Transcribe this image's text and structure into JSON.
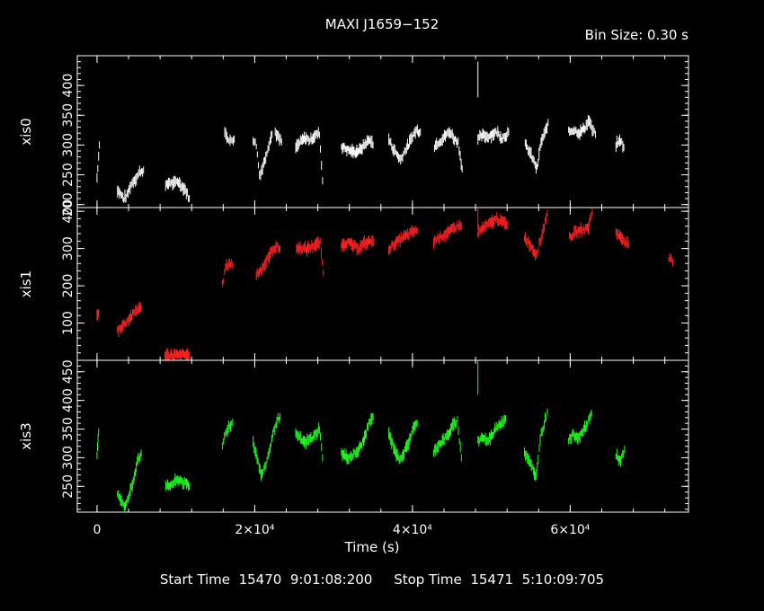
{
  "title": "MAXI J1659−152",
  "bin_size": "Bin Size: 0.30 s",
  "footer": {
    "start_label": "Start Time",
    "start_value": "15470  9:01:08:200",
    "stop_label": "Stop Time",
    "stop_value": "15471  5:10:09:705"
  },
  "chart_data": {
    "type": "scatter",
    "xlabel": "Time (s)",
    "xlim": [
      -2500,
      75000
    ],
    "x_ticks": [
      0,
      20000,
      40000,
      60000
    ],
    "x_tick_labels": [
      "0",
      "2×10⁴",
      "4×10⁴",
      "6×10⁴"
    ],
    "grid": false,
    "panels": [
      {
        "name": "xis0",
        "ylabel": "xis0",
        "color": "#ffffff",
        "ylim": [
          195,
          450
        ],
        "y_ticks": [
          200,
          250,
          300,
          350,
          400
        ],
        "segments": [
          {
            "x": [
              0,
              300
            ],
            "y": [
              245,
              300
            ]
          },
          {
            "x": [
              2600,
              3400,
              3800,
              4200,
              4600,
              5000,
              5400,
              5900
            ],
            "y": [
              225,
              210,
              215,
              230,
              240,
              245,
              255,
              258
            ]
          },
          {
            "x": [
              8700,
              9200,
              9700,
              10200,
              10700,
              11200,
              11700
            ],
            "y": [
              230,
              238,
              234,
              240,
              232,
              225,
              210
            ]
          },
          {
            "x": [
              16200,
              16600,
              17000,
              17400
            ],
            "y": [
              320,
              312,
              306,
              310
            ]
          },
          {
            "x": [
              19800,
              20200,
              20600,
              21000,
              21400,
              21800,
              22200
            ],
            "y": [
              310,
              300,
              250,
              262,
              282,
              302,
              318
            ]
          },
          {
            "x": [
              22600,
              23000,
              23400
            ],
            "y": [
              322,
              312,
              305
            ]
          },
          {
            "x": [
              25200,
              25800,
              26400,
              27000,
              27600,
              28200,
              28600
            ],
            "y": [
              295,
              305,
              312,
              308,
              316,
              320,
              240
            ]
          },
          {
            "x": [
              31000,
              31800,
              32600,
              33400,
              34000,
              34600,
              35000
            ],
            "y": [
              298,
              292,
              288,
              292,
              302,
              310,
              300
            ]
          },
          {
            "x": [
              37000,
              37500,
              38000,
              38500,
              39000,
              39500,
              40000,
              40500,
              41000
            ],
            "y": [
              310,
              295,
              285,
              275,
              290,
              300,
              315,
              325,
              322
            ]
          },
          {
            "x": [
              42800,
              43300,
              43800,
              44300,
              44800,
              45300,
              45800,
              46300
            ],
            "y": [
              298,
              305,
              310,
              318,
              322,
              310,
              305,
              260
            ]
          },
          {
            "x": [
              48300,
              48900,
              49500,
              50100,
              50700,
              51300,
              51800,
              52200
            ],
            "y": [
              310,
              316,
              314,
              318,
              322,
              312,
              316,
              322
            ]
          },
          {
            "x": [
              54300,
              54800,
              55300,
              55800,
              56300,
              56800,
              57200
            ],
            "y": [
              300,
              290,
              275,
              260,
              305,
              320,
              338
            ]
          },
          {
            "x": [
              59800,
              60500,
              61200,
              61900,
              62400,
              62800,
              63200
            ],
            "y": [
              322,
              326,
              320,
              330,
              342,
              325,
              318
            ]
          },
          {
            "x": [
              65800,
              66400,
              66800
            ],
            "y": [
              300,
              308,
              296
            ]
          }
        ]
      },
      {
        "name": "xis1",
        "ylabel": "xis1",
        "color": "#ff2020",
        "ylim": [
          0,
          410
        ],
        "y_ticks": [
          100,
          200,
          300,
          400
        ],
        "segments": [
          {
            "x": [
              0,
              200
            ],
            "y": [
              118,
              128
            ]
          },
          {
            "x": [
              2600,
              3200,
              3800,
              4400,
              5000,
              5600
            ],
            "y": [
              80,
              92,
              105,
              120,
              135,
              140
            ]
          },
          {
            "x": [
              8600,
              9400,
              10200,
              11000,
              11700
            ],
            "y": [
              12,
              14,
              13,
              15,
              12
            ]
          },
          {
            "x": [
              15900,
              16300,
              16800,
              17200
            ],
            "y": [
              200,
              250,
              262,
              255
            ]
          },
          {
            "x": [
              20200,
              20700,
              21200,
              21700,
              22200,
              22700,
              23200
            ],
            "y": [
              230,
              242,
              255,
              275,
              295,
              305,
              300
            ]
          },
          {
            "x": [
              25300,
              25900,
              26500,
              27100,
              27700,
              28300,
              28700
            ],
            "y": [
              300,
              302,
              298,
              304,
              310,
              315,
              235
            ]
          },
          {
            "x": [
              31000,
              31800,
              32500,
              33200,
              33900,
              34600,
              35100
            ],
            "y": [
              310,
              318,
              306,
              302,
              314,
              320,
              316
            ]
          },
          {
            "x": [
              37000,
              37600,
              38200,
              38800,
              39400,
              40000,
              40600
            ],
            "y": [
              300,
              310,
              320,
              330,
              336,
              345,
              348
            ]
          },
          {
            "x": [
              42700,
              43300,
              43900,
              44500,
              45100,
              45700,
              46200
            ],
            "y": [
              318,
              330,
              335,
              342,
              352,
              362,
              360
            ]
          },
          {
            "x": [
              48300,
              48900,
              49500,
              50100,
              50700,
              51300,
              52000
            ],
            "y": [
              342,
              354,
              362,
              372,
              380,
              372,
              364
            ]
          },
          {
            "x": [
              54200,
              54700,
              55200,
              55700,
              56200,
              56700,
              57100
            ],
            "y": [
              330,
              318,
              300,
              285,
              320,
              362,
              395
            ]
          },
          {
            "x": [
              59900,
              60500,
              61100,
              61700,
              62300,
              62800
            ],
            "y": [
              330,
              340,
              348,
              352,
              358,
              400
            ]
          },
          {
            "x": [
              65800,
              66400,
              67000,
              67400
            ],
            "y": [
              345,
              330,
              320,
              310
            ]
          },
          {
            "x": [
              72500,
              73000
            ],
            "y": [
              275,
              262
            ]
          }
        ]
      },
      {
        "name": "xis3",
        "ylabel": "xis3",
        "color": "#20ff20",
        "ylim": [
          205,
          470
        ],
        "y_ticks": [
          250,
          300,
          350,
          400,
          450
        ],
        "segments": [
          {
            "x": [
              0,
              200
            ],
            "y": [
              305,
              345
            ]
          },
          {
            "x": [
              2600,
              3100,
              3600,
              4100,
              4600,
              5100,
              5600
            ],
            "y": [
              240,
              225,
              215,
              235,
              260,
              295,
              308
            ]
          },
          {
            "x": [
              8700,
              9300,
              9900,
              10500,
              11100,
              11700
            ],
            "y": [
              248,
              252,
              258,
              262,
              255,
              250
            ]
          },
          {
            "x": [
              15900,
              16300,
              16800,
              17200
            ],
            "y": [
              320,
              345,
              355,
              362
            ]
          },
          {
            "x": [
              19800,
              20300,
              20800,
              21300,
              21800,
              22300,
              22800,
              23200
            ],
            "y": [
              328,
              300,
              270,
              282,
              310,
              340,
              365,
              372
            ]
          },
          {
            "x": [
              25200,
              25800,
              26400,
              27000,
              27600,
              28200,
              28600
            ],
            "y": [
              340,
              332,
              326,
              332,
              338,
              352,
              300
            ]
          },
          {
            "x": [
              31000,
              31700,
              32400,
              33100,
              33800,
              34500,
              35000
            ],
            "y": [
              308,
              300,
              304,
              312,
              330,
              360,
              372
            ]
          },
          {
            "x": [
              37000,
              37600,
              38200,
              38800,
              39400,
              40000,
              40600
            ],
            "y": [
              340,
              320,
              298,
              305,
              322,
              348,
              360
            ]
          },
          {
            "x": [
              42700,
              43300,
              43900,
              44500,
              45100,
              45700,
              46200
            ],
            "y": [
              312,
              322,
              330,
              340,
              355,
              365,
              300
            ]
          },
          {
            "x": [
              48300,
              48900,
              49500,
              50100,
              50700,
              51300,
              51800
            ],
            "y": [
              330,
              336,
              328,
              340,
              355,
              362,
              368
            ]
          },
          {
            "x": [
              54200,
              54700,
              55200,
              55700,
              56200,
              56700,
              57100
            ],
            "y": [
              310,
              295,
              282,
              268,
              335,
              360,
              380
            ]
          },
          {
            "x": [
              59800,
              60400,
              61000,
              61600,
              62200,
              62700
            ],
            "y": [
              332,
              340,
              336,
              345,
              360,
              378
            ]
          },
          {
            "x": [
              65800,
              66400,
              66900
            ],
            "y": [
              305,
              295,
              315
            ]
          }
        ],
        "spikes": [
          {
            "x": 48300,
            "y": [
              410,
              470
            ]
          }
        ]
      }
    ],
    "spikes_xis0": [
      {
        "x": 48300,
        "y": [
          380,
          440
        ]
      }
    ],
    "spikes_xis1": [
      {
        "x": 48300,
        "y": [
          350,
          410
        ]
      }
    ]
  }
}
